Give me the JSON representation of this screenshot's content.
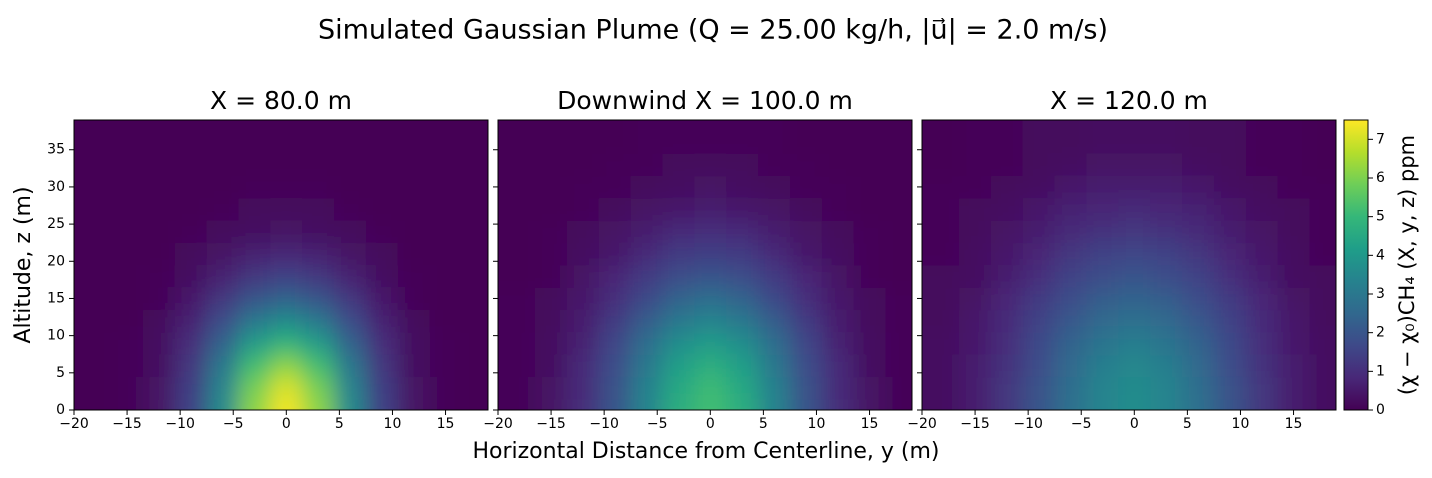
{
  "title": "Simulated Gaussian Plume (Q = 25.00 kg/h, |u⃗| = 2.0 m/s)",
  "x_label": "Horizontal Distance from Centerline, y (m)",
  "y_label": "Altitude, z (m)",
  "colorbar": {
    "label": "(χ − χ₀)CH₄ (X, y, z) ppm",
    "colormap": "viridis",
    "clim": [
      0,
      7.5
    ],
    "ticks": [
      0,
      1,
      2,
      3,
      4,
      5,
      6,
      7
    ]
  },
  "chart_data": [
    {
      "type": "heatmap",
      "title": "X = 80.0 m",
      "x": [
        -18,
        -15,
        -12,
        -9,
        -6,
        -3,
        0,
        3,
        6,
        9,
        12,
        15,
        18
      ],
      "y": [
        0,
        3,
        6,
        9,
        12,
        15,
        18,
        21,
        24,
        27,
        30,
        33,
        36
      ],
      "values": [
        [
          0,
          0.1,
          0.4,
          1.5,
          3.6,
          6.2,
          7.4,
          6.2,
          3.6,
          1.5,
          0.4,
          0.1,
          0
        ],
        [
          0,
          0.1,
          0.4,
          1.4,
          3.4,
          5.9,
          7.1,
          5.9,
          3.4,
          1.4,
          0.4,
          0.1,
          0
        ],
        [
          0,
          0.1,
          0.3,
          1.2,
          3.0,
          5.2,
          6.2,
          5.2,
          3.0,
          1.2,
          0.3,
          0.1,
          0
        ],
        [
          0,
          0.1,
          0.3,
          1.0,
          2.4,
          4.1,
          4.9,
          4.1,
          2.4,
          1.0,
          0.3,
          0.1,
          0
        ],
        [
          0,
          0,
          0.2,
          0.7,
          1.8,
          3.0,
          3.6,
          3.0,
          1.8,
          0.7,
          0.2,
          0,
          0
        ],
        [
          0,
          0,
          0.1,
          0.5,
          1.2,
          2.0,
          2.4,
          2.0,
          1.2,
          0.5,
          0.1,
          0,
          0
        ],
        [
          0,
          0,
          0.1,
          0.3,
          0.7,
          1.2,
          1.5,
          1.2,
          0.7,
          0.3,
          0.1,
          0,
          0
        ],
        [
          0,
          0,
          0,
          0.2,
          0.4,
          0.7,
          0.8,
          0.7,
          0.4,
          0.2,
          0,
          0,
          0
        ],
        [
          0,
          0,
          0,
          0.1,
          0.2,
          0.3,
          0.4,
          0.3,
          0.2,
          0.1,
          0,
          0,
          0
        ],
        [
          0,
          0,
          0,
          0,
          0.1,
          0.2,
          0.2,
          0.2,
          0.1,
          0,
          0,
          0,
          0
        ],
        [
          0,
          0,
          0,
          0,
          0,
          0.1,
          0.1,
          0.1,
          0,
          0,
          0,
          0,
          0
        ],
        [
          0,
          0,
          0,
          0,
          0,
          0,
          0,
          0,
          0,
          0,
          0,
          0,
          0
        ],
        [
          0,
          0,
          0,
          0,
          0,
          0,
          0,
          0,
          0,
          0,
          0,
          0,
          0
        ]
      ],
      "xlim": [
        -20,
        19
      ],
      "ylim": [
        0,
        39
      ],
      "xticks": [
        {
          "value": -20,
          "label": "−20"
        },
        {
          "value": -15,
          "label": "−15"
        },
        {
          "value": -10,
          "label": "−10"
        },
        {
          "value": -5,
          "label": "−5"
        },
        0,
        5,
        10,
        15
      ],
      "yticks": [
        0,
        5,
        10,
        15,
        20,
        25,
        30,
        35
      ],
      "ytick_labels": true
    },
    {
      "type": "heatmap",
      "title": "Downwind X = 100.0 m",
      "x": [
        -18,
        -15,
        -12,
        -9,
        -6,
        -3,
        0,
        3,
        6,
        9,
        12,
        15,
        18
      ],
      "y": [
        0,
        3,
        6,
        9,
        12,
        15,
        18,
        21,
        24,
        27,
        30,
        33,
        36
      ],
      "values": [
        [
          0.1,
          0.4,
          1.0,
          2.0,
          3.4,
          4.7,
          5.2,
          4.7,
          3.4,
          2.0,
          1.0,
          0.4,
          0.1
        ],
        [
          0.1,
          0.4,
          0.9,
          1.9,
          3.3,
          4.5,
          5.1,
          4.5,
          3.3,
          1.9,
          0.9,
          0.4,
          0.1
        ],
        [
          0.1,
          0.3,
          0.9,
          1.8,
          3.0,
          4.2,
          4.7,
          4.2,
          3.0,
          1.8,
          0.9,
          0.3,
          0.1
        ],
        [
          0.1,
          0.3,
          0.7,
          1.6,
          2.7,
          3.7,
          4.1,
          3.7,
          2.7,
          1.6,
          0.7,
          0.3,
          0.1
        ],
        [
          0.1,
          0.2,
          0.6,
          1.3,
          2.2,
          3.0,
          3.4,
          3.0,
          2.2,
          1.3,
          0.6,
          0.2,
          0.1
        ],
        [
          0.1,
          0.2,
          0.5,
          1.0,
          1.7,
          2.4,
          2.7,
          2.4,
          1.7,
          1.0,
          0.5,
          0.2,
          0.1
        ],
        [
          0,
          0.1,
          0.4,
          0.8,
          1.3,
          1.8,
          2.0,
          1.8,
          1.3,
          0.8,
          0.4,
          0.1,
          0
        ],
        [
          0,
          0.1,
          0.3,
          0.5,
          0.9,
          1.3,
          1.4,
          1.3,
          0.9,
          0.5,
          0.3,
          0.1,
          0
        ],
        [
          0,
          0.1,
          0.2,
          0.4,
          0.6,
          0.9,
          1.0,
          0.9,
          0.6,
          0.4,
          0.2,
          0.1,
          0
        ],
        [
          0,
          0,
          0.1,
          0.2,
          0.4,
          0.5,
          0.6,
          0.5,
          0.4,
          0.2,
          0.1,
          0,
          0
        ],
        [
          0,
          0,
          0.1,
          0.1,
          0.2,
          0.3,
          0.4,
          0.3,
          0.2,
          0.1,
          0.1,
          0,
          0
        ],
        [
          0,
          0,
          0,
          0.1,
          0.1,
          0.2,
          0.2,
          0.2,
          0.1,
          0.1,
          0,
          0,
          0
        ],
        [
          0,
          0,
          0,
          0,
          0.1,
          0.1,
          0.1,
          0.1,
          0.1,
          0,
          0,
          0,
          0
        ]
      ],
      "xlim": [
        -20,
        19
      ],
      "ylim": [
        0,
        39
      ],
      "xticks": [
        {
          "value": -20,
          "label": "−20"
        },
        {
          "value": -15,
          "label": "−15"
        },
        {
          "value": -10,
          "label": "−10"
        },
        {
          "value": -5,
          "label": "−5"
        },
        0,
        5,
        10,
        15
      ],
      "yticks": [
        0,
        5,
        10,
        15,
        20,
        25,
        30,
        35
      ],
      "ytick_labels": false
    },
    {
      "type": "heatmap",
      "title": "X = 120.0 m",
      "x": [
        -18,
        -15,
        -12,
        -9,
        -6,
        -3,
        0,
        3,
        6,
        9,
        12,
        15,
        18
      ],
      "y": [
        0,
        3,
        6,
        9,
        12,
        15,
        18,
        21,
        24,
        27,
        30,
        33,
        36
      ],
      "values": [
        [
          0.3,
          0.6,
          1.2,
          2.0,
          2.8,
          3.4,
          3.7,
          3.4,
          2.8,
          2.0,
          1.2,
          0.6,
          0.3
        ],
        [
          0.3,
          0.6,
          1.2,
          1.9,
          2.7,
          3.4,
          3.6,
          3.4,
          2.7,
          1.9,
          1.2,
          0.6,
          0.3
        ],
        [
          0.3,
          0.6,
          1.1,
          1.8,
          2.6,
          3.2,
          3.5,
          3.2,
          2.6,
          1.8,
          1.1,
          0.6,
          0.3
        ],
        [
          0.3,
          0.5,
          1.0,
          1.7,
          2.4,
          2.9,
          3.2,
          2.9,
          2.4,
          1.7,
          1.0,
          0.5,
          0.3
        ],
        [
          0.2,
          0.5,
          0.9,
          1.5,
          2.1,
          2.6,
          2.8,
          2.6,
          2.1,
          1.5,
          0.9,
          0.5,
          0.2
        ],
        [
          0.2,
          0.4,
          0.8,
          1.3,
          1.8,
          2.2,
          2.4,
          2.2,
          1.8,
          1.3,
          0.8,
          0.4,
          0.2
        ],
        [
          0.2,
          0.3,
          0.6,
          1.0,
          1.5,
          1.8,
          2.0,
          1.8,
          1.5,
          1.0,
          0.6,
          0.3,
          0.2
        ],
        [
          0.1,
          0.3,
          0.5,
          0.8,
          1.2,
          1.5,
          1.6,
          1.5,
          1.2,
          0.8,
          0.5,
          0.3,
          0.1
        ],
        [
          0.1,
          0.2,
          0.4,
          0.6,
          0.9,
          1.1,
          1.2,
          1.1,
          0.9,
          0.6,
          0.4,
          0.2,
          0.1
        ],
        [
          0.1,
          0.2,
          0.3,
          0.5,
          0.7,
          0.8,
          0.9,
          0.8,
          0.7,
          0.5,
          0.3,
          0.2,
          0.1
        ],
        [
          0.1,
          0.1,
          0.2,
          0.3,
          0.5,
          0.6,
          0.6,
          0.6,
          0.5,
          0.3,
          0.2,
          0.1,
          0.1
        ],
        [
          0,
          0.1,
          0.1,
          0.2,
          0.3,
          0.4,
          0.4,
          0.4,
          0.3,
          0.2,
          0.1,
          0.1,
          0
        ],
        [
          0,
          0.1,
          0.1,
          0.2,
          0.2,
          0.3,
          0.3,
          0.3,
          0.2,
          0.2,
          0.1,
          0.1,
          0
        ]
      ],
      "xlim": [
        -20,
        19
      ],
      "ylim": [
        0,
        39
      ],
      "xticks": [
        {
          "value": -20,
          "label": "−20"
        },
        {
          "value": -15,
          "label": "−15"
        },
        {
          "value": -10,
          "label": "−10"
        },
        {
          "value": -5,
          "label": "−5"
        },
        0,
        5,
        10,
        15
      ],
      "yticks": [
        0,
        5,
        10,
        15,
        20,
        25,
        30,
        35
      ],
      "ytick_labels": false
    }
  ]
}
